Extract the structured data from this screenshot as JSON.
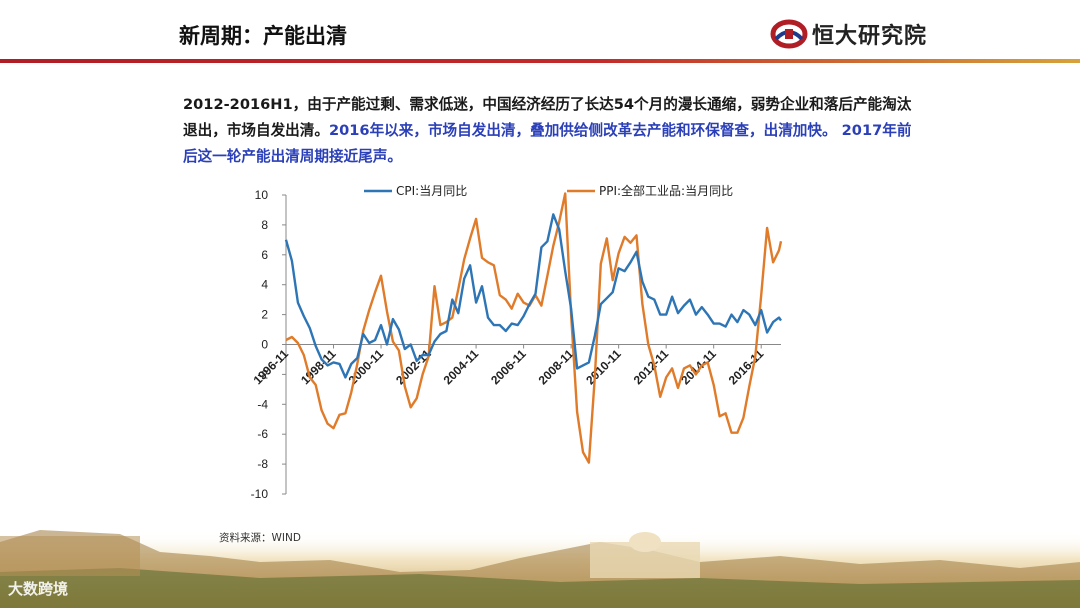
{
  "header": {
    "title": "新周期：产能出清",
    "logo_text": "恒大研究院",
    "brand_color": "#b11d25"
  },
  "summary": {
    "part1": "2012-2016H1，由于产能过剩、需求低迷，中国经济经历了长达54个月的漫长通缩，弱势企业和落后产能淘汰退出，市场自发出清。",
    "part2": "2016年以来，市场自发出清，叠加供给侧改革去产能和环保督查，出清加快。 2017年前后这一轮产能出清周期接近尾声。",
    "highlight_color": "#2a3fb8"
  },
  "source": "资料来源：WIND",
  "watermark": "大数跨境",
  "chart_data": {
    "type": "line",
    "ylim": [
      -10,
      10
    ],
    "yticks": [
      10,
      8,
      6,
      4,
      2,
      0,
      -2,
      -4,
      -6,
      -8,
      -10
    ],
    "xtick_labels": [
      "1996-11",
      "1998-11",
      "2000-11",
      "2002-11",
      "2004-11",
      "2006-11",
      "2008-11",
      "2010-11",
      "2012-11",
      "2014-11",
      "2016-11"
    ],
    "legend_position": "top",
    "grid": false,
    "series": [
      {
        "name": "CPI:当月同比",
        "color": "#2e75b6",
        "points": [
          [
            "1996-11",
            7.0
          ],
          [
            "1997-02",
            5.6
          ],
          [
            "1997-05",
            2.8
          ],
          [
            "1997-08",
            1.9
          ],
          [
            "1997-11",
            1.1
          ],
          [
            "1998-02",
            -0.1
          ],
          [
            "1998-05",
            -1.0
          ],
          [
            "1998-08",
            -1.4
          ],
          [
            "1998-11",
            -1.2
          ],
          [
            "1999-02",
            -1.3
          ],
          [
            "1999-05",
            -2.2
          ],
          [
            "1999-08",
            -1.3
          ],
          [
            "1999-11",
            -0.9
          ],
          [
            "2000-02",
            0.7
          ],
          [
            "2000-05",
            0.1
          ],
          [
            "2000-08",
            0.3
          ],
          [
            "2000-11",
            1.3
          ],
          [
            "2001-02",
            0.0
          ],
          [
            "2001-05",
            1.7
          ],
          [
            "2001-08",
            1.0
          ],
          [
            "2001-11",
            -0.3
          ],
          [
            "2002-02",
            0.0
          ],
          [
            "2002-05",
            -1.1
          ],
          [
            "2002-08",
            -0.7
          ],
          [
            "2002-11",
            -0.7
          ],
          [
            "2003-02",
            0.2
          ],
          [
            "2003-05",
            0.7
          ],
          [
            "2003-08",
            0.9
          ],
          [
            "2003-11",
            3.0
          ],
          [
            "2004-02",
            2.1
          ],
          [
            "2004-05",
            4.4
          ],
          [
            "2004-08",
            5.3
          ],
          [
            "2004-11",
            2.8
          ],
          [
            "2005-02",
            3.9
          ],
          [
            "2005-05",
            1.8
          ],
          [
            "2005-08",
            1.3
          ],
          [
            "2005-11",
            1.3
          ],
          [
            "2006-02",
            0.9
          ],
          [
            "2006-05",
            1.4
          ],
          [
            "2006-08",
            1.3
          ],
          [
            "2006-11",
            1.9
          ],
          [
            "2007-02",
            2.7
          ],
          [
            "2007-05",
            3.4
          ],
          [
            "2007-08",
            6.5
          ],
          [
            "2007-11",
            6.9
          ],
          [
            "2008-02",
            8.7
          ],
          [
            "2008-05",
            7.7
          ],
          [
            "2008-08",
            4.9
          ],
          [
            "2008-11",
            2.4
          ],
          [
            "2009-02",
            -1.6
          ],
          [
            "2009-05",
            -1.4
          ],
          [
            "2009-08",
            -1.2
          ],
          [
            "2009-11",
            0.6
          ],
          [
            "2010-02",
            2.7
          ],
          [
            "2010-05",
            3.1
          ],
          [
            "2010-08",
            3.5
          ],
          [
            "2010-11",
            5.1
          ],
          [
            "2011-02",
            4.9
          ],
          [
            "2011-05",
            5.5
          ],
          [
            "2011-08",
            6.2
          ],
          [
            "2011-11",
            4.2
          ],
          [
            "2012-02",
            3.2
          ],
          [
            "2012-05",
            3.0
          ],
          [
            "2012-08",
            2.0
          ],
          [
            "2012-11",
            2.0
          ],
          [
            "2013-02",
            3.2
          ],
          [
            "2013-05",
            2.1
          ],
          [
            "2013-08",
            2.6
          ],
          [
            "2013-11",
            3.0
          ],
          [
            "2014-02",
            2.0
          ],
          [
            "2014-05",
            2.5
          ],
          [
            "2014-08",
            2.0
          ],
          [
            "2014-11",
            1.4
          ],
          [
            "2015-02",
            1.4
          ],
          [
            "2015-05",
            1.2
          ],
          [
            "2015-08",
            2.0
          ],
          [
            "2015-11",
            1.5
          ],
          [
            "2016-02",
            2.3
          ],
          [
            "2016-05",
            2.0
          ],
          [
            "2016-08",
            1.3
          ],
          [
            "2016-11",
            2.3
          ],
          [
            "2017-02",
            0.8
          ],
          [
            "2017-05",
            1.5
          ],
          [
            "2017-08",
            1.8
          ],
          [
            "2017-09",
            1.6
          ]
        ]
      },
      {
        "name": "PPI:全部工业品:当月同比",
        "color": "#e07b2a",
        "points": [
          [
            "1996-11",
            0.3
          ],
          [
            "1997-02",
            0.5
          ],
          [
            "1997-05",
            0.1
          ],
          [
            "1997-08",
            -0.7
          ],
          [
            "1997-11",
            -2.2
          ],
          [
            "1998-02",
            -2.7
          ],
          [
            "1998-05",
            -4.4
          ],
          [
            "1998-08",
            -5.3
          ],
          [
            "1998-11",
            -5.6
          ],
          [
            "1999-02",
            -4.7
          ],
          [
            "1999-05",
            -4.6
          ],
          [
            "1999-08",
            -3.2
          ],
          [
            "1999-11",
            -1.3
          ],
          [
            "2000-02",
            0.9
          ],
          [
            "2000-05",
            2.3
          ],
          [
            "2000-08",
            3.5
          ],
          [
            "2000-11",
            4.6
          ],
          [
            "2001-02",
            2.2
          ],
          [
            "2001-05",
            0.2
          ],
          [
            "2001-08",
            -0.4
          ],
          [
            "2001-11",
            -2.8
          ],
          [
            "2002-02",
            -4.2
          ],
          [
            "2002-05",
            -3.6
          ],
          [
            "2002-08",
            -2.0
          ],
          [
            "2002-11",
            -0.8
          ],
          [
            "2003-02",
            3.9
          ],
          [
            "2003-05",
            1.3
          ],
          [
            "2003-08",
            1.5
          ],
          [
            "2003-11",
            1.8
          ],
          [
            "2004-02",
            3.7
          ],
          [
            "2004-05",
            5.7
          ],
          [
            "2004-08",
            7.1
          ],
          [
            "2004-11",
            8.4
          ],
          [
            "2005-02",
            5.8
          ],
          [
            "2005-05",
            5.5
          ],
          [
            "2005-08",
            5.3
          ],
          [
            "2005-11",
            3.3
          ],
          [
            "2006-02",
            3.0
          ],
          [
            "2006-05",
            2.4
          ],
          [
            "2006-08",
            3.4
          ],
          [
            "2006-11",
            2.8
          ],
          [
            "2007-02",
            2.6
          ],
          [
            "2007-05",
            3.3
          ],
          [
            "2007-08",
            2.6
          ],
          [
            "2007-11",
            4.6
          ],
          [
            "2008-02",
            6.6
          ],
          [
            "2008-05",
            8.2
          ],
          [
            "2008-08",
            10.1
          ],
          [
            "2008-11",
            2.0
          ],
          [
            "2009-02",
            -4.5
          ],
          [
            "2009-05",
            -7.2
          ],
          [
            "2009-08",
            -7.9
          ],
          [
            "2009-11",
            -2.1
          ],
          [
            "2010-02",
            5.4
          ],
          [
            "2010-05",
            7.1
          ],
          [
            "2010-08",
            4.3
          ],
          [
            "2010-11",
            6.1
          ],
          [
            "2011-02",
            7.2
          ],
          [
            "2011-05",
            6.8
          ],
          [
            "2011-08",
            7.3
          ],
          [
            "2011-11",
            2.7
          ],
          [
            "2012-02",
            0.0
          ],
          [
            "2012-05",
            -1.4
          ],
          [
            "2012-08",
            -3.5
          ],
          [
            "2012-11",
            -2.2
          ],
          [
            "2013-02",
            -1.6
          ],
          [
            "2013-05",
            -2.9
          ],
          [
            "2013-08",
            -1.6
          ],
          [
            "2013-11",
            -1.4
          ],
          [
            "2014-02",
            -2.0
          ],
          [
            "2014-05",
            -1.4
          ],
          [
            "2014-08",
            -1.2
          ],
          [
            "2014-11",
            -2.7
          ],
          [
            "2015-02",
            -4.8
          ],
          [
            "2015-05",
            -4.6
          ],
          [
            "2015-08",
            -5.9
          ],
          [
            "2015-11",
            -5.9
          ],
          [
            "2016-02",
            -4.9
          ],
          [
            "2016-05",
            -2.8
          ],
          [
            "2016-08",
            -0.8
          ],
          [
            "2016-11",
            3.3
          ],
          [
            "2017-02",
            7.8
          ],
          [
            "2017-05",
            5.5
          ],
          [
            "2017-08",
            6.3
          ],
          [
            "2017-09",
            6.9
          ]
        ]
      }
    ]
  }
}
